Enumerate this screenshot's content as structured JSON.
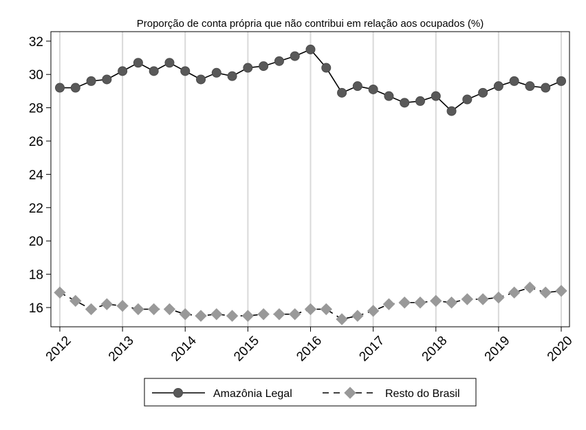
{
  "chart_data": {
    "type": "line",
    "title": "Proporção de conta própria que não contribui em relação aos ocupados (%)",
    "xlabel": "",
    "ylabel": "",
    "xlim": [
      2012,
      2020
    ],
    "ylim": [
      15,
      32.5
    ],
    "grid": "vertical",
    "legend_position": "bottom",
    "x_ticks": [
      "2012",
      "2013",
      "2014",
      "2015",
      "2016",
      "2017",
      "2018",
      "2019",
      "2020"
    ],
    "y_ticks": [
      "16",
      "18",
      "20",
      "22",
      "24",
      "26",
      "28",
      "30",
      "32"
    ],
    "x": [
      2012,
      2012.25,
      2012.5,
      2012.75,
      2013,
      2013.25,
      2013.5,
      2013.75,
      2014,
      2014.25,
      2014.5,
      2014.75,
      2015,
      2015.25,
      2015.5,
      2015.75,
      2016,
      2016.25,
      2016.5,
      2016.75,
      2017,
      2017.25,
      2017.5,
      2017.75,
      2018,
      2018.25,
      2018.5,
      2018.75,
      2019,
      2019.25,
      2019.5,
      2019.75,
      2020
    ],
    "series": [
      {
        "name": "Amazônia Legal",
        "values": [
          29.2,
          29.2,
          29.6,
          29.7,
          30.2,
          30.7,
          30.2,
          30.7,
          30.2,
          29.7,
          30.1,
          29.9,
          30.4,
          30.5,
          30.8,
          31.1,
          31.5,
          30.4,
          28.9,
          29.3,
          29.1,
          28.7,
          28.3,
          28.4,
          28.7,
          27.8,
          28.5,
          28.9,
          29.3,
          29.6,
          29.3,
          29.2,
          29.6
        ],
        "color": "#595959",
        "line": "solid",
        "marker": "circle"
      },
      {
        "name": "Resto do Brasil",
        "values": [
          16.9,
          16.4,
          15.9,
          16.2,
          16.1,
          15.9,
          15.9,
          15.9,
          15.6,
          15.5,
          15.6,
          15.5,
          15.5,
          15.6,
          15.6,
          15.6,
          15.9,
          15.9,
          15.3,
          15.5,
          15.8,
          16.2,
          16.3,
          16.3,
          16.4,
          16.3,
          16.5,
          16.5,
          16.6,
          16.9,
          17.2,
          16.9,
          17.0
        ],
        "color": "#999999",
        "line": "dashed",
        "marker": "diamond"
      }
    ]
  }
}
